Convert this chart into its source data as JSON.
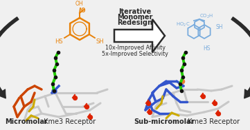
{
  "bg_color": "#f0f0f0",
  "title_text": "Iterative\nMonomer\nRedesign",
  "improvement_text": "10x-Improved Affinity\n5x-Improved Selectivity",
  "left_label_bold": "Micromolar",
  "left_label_normal": " Kme3 Receptor",
  "right_label_bold": "Sub-micromolar",
  "right_label_normal": " Kme3 Receptor",
  "arrow_color": "#2a2a2a",
  "orange_color": "#e8820a",
  "blue_color": "#7aacdd",
  "blue_dark": "#3355cc",
  "text_color": "#111111",
  "green_color": "#22cc00",
  "red_color": "#cc2200",
  "yellow_color": "#ccaa00",
  "gray_color": "#cccccc",
  "figsize": [
    3.61,
    1.89
  ],
  "dpi": 100
}
